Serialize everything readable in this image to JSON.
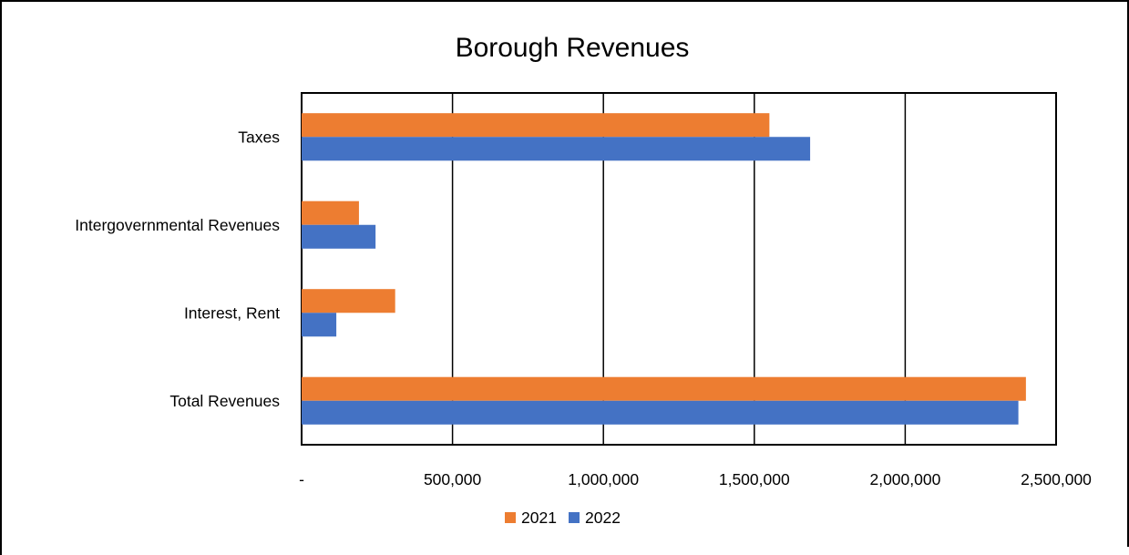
{
  "chart_data": {
    "type": "bar",
    "orientation": "horizontal",
    "title": "Borough Revenues",
    "xlabel": "",
    "ylabel": "",
    "categories": [
      "Taxes",
      "Intergovernmental Revenues",
      "Interest, Rent",
      "Total Revenues"
    ],
    "series": [
      {
        "name": "2021",
        "color": "#ED7D31",
        "values": [
          1550000,
          190000,
          310000,
          2400000
        ]
      },
      {
        "name": "2022",
        "color": "#4472C4",
        "values": [
          1685000,
          245000,
          115000,
          2375000
        ]
      }
    ],
    "xlim": [
      0,
      2500000
    ],
    "xticks": [
      0,
      500000,
      1000000,
      1500000,
      2000000,
      2500000
    ],
    "xtick_labels": [
      "-",
      "500,000",
      "1,000,000",
      "1,500,000",
      "2,000,000",
      "2,500,000"
    ],
    "grid": "vertical",
    "legend_position": "bottom"
  }
}
